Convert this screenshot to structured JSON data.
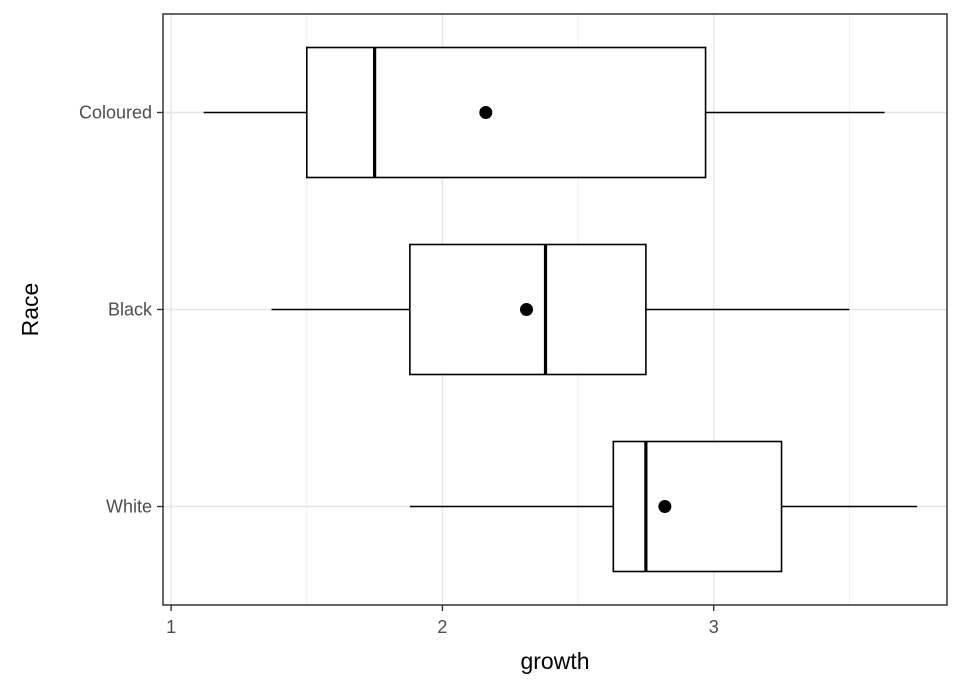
{
  "chart_data": {
    "type": "boxplot",
    "orientation": "horizontal",
    "xlabel": "growth",
    "ylabel": "Race",
    "xlim": [
      0.97,
      3.86
    ],
    "xticks": [
      1,
      2,
      3
    ],
    "grid": true,
    "categories": [
      "White",
      "Black",
      "Coloured"
    ],
    "boxes": [
      {
        "category": "White",
        "whisker_low": 1.88,
        "q1": 2.63,
        "median": 2.75,
        "q3": 3.25,
        "whisker_high": 3.75,
        "mean": 2.82
      },
      {
        "category": "Black",
        "whisker_low": 1.37,
        "q1": 1.88,
        "median": 2.38,
        "q3": 2.75,
        "whisker_high": 3.5,
        "mean": 2.31
      },
      {
        "category": "Coloured",
        "whisker_low": 1.12,
        "q1": 1.5,
        "median": 1.75,
        "q3": 2.97,
        "whisker_high": 3.63,
        "mean": 2.16
      }
    ]
  }
}
